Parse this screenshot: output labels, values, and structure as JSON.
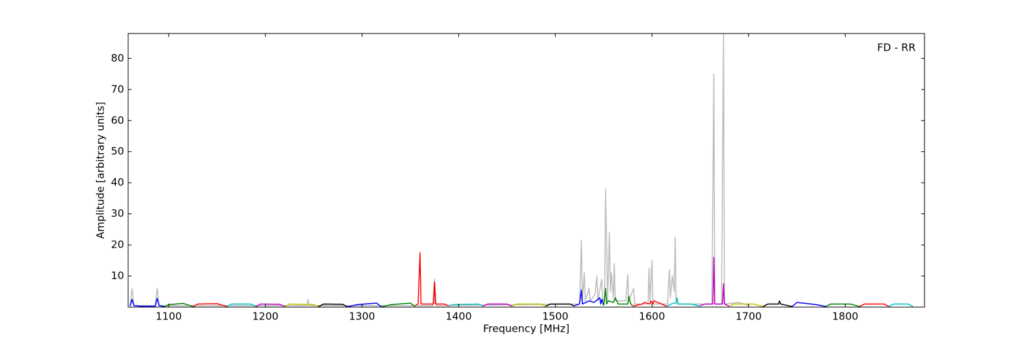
{
  "chart_data": {
    "type": "line",
    "x_label": "Frequency [MHz]",
    "y_label": "Amplitude [arbitrary units]",
    "annotation": "FD - RR",
    "xlim": [
      1058,
      1882
    ],
    "ylim": [
      0,
      88
    ],
    "xticks": [
      1100,
      1200,
      1300,
      1400,
      1500,
      1600,
      1700,
      1800
    ],
    "yticks": [
      10,
      20,
      30,
      40,
      50,
      60,
      70,
      80
    ],
    "series": [
      {
        "color": "#bbbbbb",
        "x": [
          1060,
          1062,
          1064,
          1086,
          1088,
          1090,
          1243,
          1244,
          1245,
          1373,
          1375,
          1377,
          1525,
          1527,
          1528,
          1530,
          1531,
          1535,
          1536,
          1541,
          1543,
          1544,
          1548,
          1549,
          1551,
          1552,
          1553,
          1554,
          1556,
          1557,
          1558,
          1560,
          1561,
          1562,
          1573,
          1575,
          1576,
          1581,
          1582,
          1596,
          1597,
          1598,
          1600,
          1601,
          1616,
          1618,
          1619,
          1621,
          1623,
          1624,
          1625,
          1662,
          1664,
          1665,
          1672,
          1674,
          1675,
          1690,
          1700
        ],
        "values": [
          0.5,
          6,
          0.5,
          0.5,
          6,
          0.5,
          0.5,
          2.5,
          0.5,
          0.5,
          9,
          0.5,
          1,
          21.5,
          2,
          11,
          2,
          6,
          2,
          4,
          10,
          2,
          9,
          2,
          2,
          38,
          21.5,
          2,
          24,
          5,
          11,
          3,
          14,
          2,
          2,
          10.5,
          2,
          6,
          1,
          1,
          12.5,
          2,
          15,
          1,
          1,
          12,
          3,
          10,
          5,
          22.5,
          1,
          1,
          75,
          1,
          1,
          88,
          1,
          1.5,
          0.5
        ]
      },
      {
        "color": "#0000ff",
        "x": [
          1060,
          1062,
          1064,
          1070,
          1086,
          1088,
          1090,
          1095
        ],
        "values": [
          0.3,
          2.5,
          0.5,
          0.3,
          0.3,
          2.8,
          0.5,
          0.2
        ]
      },
      {
        "color": "#008000",
        "x": [
          1095,
          1100,
          1115,
          1125
        ],
        "values": [
          0.1,
          0.8,
          1.2,
          0.2
        ]
      },
      {
        "color": "#ff0000",
        "x": [
          1125,
          1130,
          1150,
          1160
        ],
        "values": [
          0.1,
          1,
          1.1,
          0.2
        ]
      },
      {
        "color": "#00bfbf",
        "x": [
          1160,
          1165,
          1185,
          1190
        ],
        "values": [
          0.1,
          1,
          1,
          0.2
        ]
      },
      {
        "color": "#bf00bf",
        "x": [
          1190,
          1195,
          1215,
          1220
        ],
        "values": [
          0.1,
          1,
          0.9,
          0.2
        ]
      },
      {
        "color": "#bfbf00",
        "x": [
          1220,
          1225,
          1250,
          1255
        ],
        "values": [
          0.1,
          1,
          0.8,
          0.2
        ]
      },
      {
        "color": "#000000",
        "x": [
          1255,
          1260,
          1280,
          1285
        ],
        "values": [
          0.1,
          1,
          0.9,
          0.1
        ]
      },
      {
        "color": "#0000ff",
        "x": [
          1285,
          1295,
          1315,
          1320
        ],
        "values": [
          0.1,
          0.8,
          1.3,
          0.1
        ]
      },
      {
        "color": "#008000",
        "x": [
          1320,
          1330,
          1350,
          1355
        ],
        "values": [
          0.1,
          0.8,
          1.3,
          0.2
        ]
      },
      {
        "color": "#ff0000",
        "x": [
          1355,
          1358,
          1360,
          1361,
          1362,
          1374,
          1375,
          1376,
          1385,
          1390
        ],
        "values": [
          0.5,
          1,
          17.5,
          1,
          1,
          1,
          8,
          1,
          1,
          0.4
        ]
      },
      {
        "color": "#00bfbf",
        "x": [
          1390,
          1395,
          1420,
          1425
        ],
        "values": [
          0.5,
          0.8,
          1,
          0.4
        ]
      },
      {
        "color": "#bf00bf",
        "x": [
          1425,
          1430,
          1450,
          1455
        ],
        "values": [
          0.3,
          1,
          1,
          0.3
        ]
      },
      {
        "color": "#bfbf00",
        "x": [
          1455,
          1460,
          1485,
          1490
        ],
        "values": [
          0.3,
          1,
          1,
          0.3
        ]
      },
      {
        "color": "#000000",
        "x": [
          1490,
          1495,
          1515,
          1520
        ],
        "values": [
          0.3,
          1,
          1,
          0.3
        ]
      },
      {
        "color": "#0000ff",
        "x": [
          1520,
          1525,
          1527,
          1528,
          1535,
          1540,
          1546,
          1547,
          1548,
          1550
        ],
        "values": [
          0.5,
          1,
          5.5,
          1,
          2,
          1.5,
          3,
          1,
          2.5,
          0.5
        ]
      },
      {
        "color": "#008000",
        "x": [
          1550,
          1552,
          1553,
          1555,
          1560,
          1562,
          1565,
          1575,
          1576,
          1578,
          1580
        ],
        "values": [
          0.5,
          6,
          1,
          2,
          1.5,
          3,
          1,
          1,
          3.5,
          1,
          0.5
        ]
      },
      {
        "color": "#ff0000",
        "x": [
          1580,
          1590,
          1592,
          1598,
          1599,
          1601,
          1602,
          1610,
          1615
        ],
        "values": [
          0.3,
          1,
          1.5,
          1,
          2,
          1,
          2,
          1,
          0.3
        ]
      },
      {
        "color": "#00bfbf",
        "x": [
          1615,
          1620,
          1625,
          1626,
          1627,
          1640,
          1650
        ],
        "values": [
          0.3,
          1,
          1.5,
          3,
          1,
          1,
          0.3
        ]
      },
      {
        "color": "#bf00bf",
        "x": [
          1650,
          1655,
          1663,
          1664,
          1665,
          1673,
          1674,
          1675,
          1680
        ],
        "values": [
          0.5,
          1,
          1,
          16,
          1,
          1,
          7.5,
          1,
          0.3
        ]
      },
      {
        "color": "#bfbf00",
        "x": [
          1680,
          1685,
          1705,
          1715
        ],
        "values": [
          0.3,
          1,
          1,
          0.2
        ]
      },
      {
        "color": "#000000",
        "x": [
          1715,
          1720,
          1731,
          1732,
          1733,
          1745
        ],
        "values": [
          0.2,
          1,
          1,
          2,
          1,
          0.2
        ]
      },
      {
        "color": "#0000ff",
        "x": [
          1745,
          1750,
          1770,
          1780
        ],
        "values": [
          0.2,
          1.5,
          0.8,
          0.2
        ]
      },
      {
        "color": "#008000",
        "x": [
          1780,
          1785,
          1805,
          1815
        ],
        "values": [
          0.2,
          1,
          1,
          0.2
        ]
      },
      {
        "color": "#ff0000",
        "x": [
          1815,
          1820,
          1840,
          1845
        ],
        "values": [
          0.2,
          1,
          1,
          0.2
        ]
      },
      {
        "color": "#00bfbf",
        "x": [
          1845,
          1850,
          1865,
          1870
        ],
        "values": [
          0.2,
          1,
          1,
          0.2
        ]
      }
    ]
  }
}
